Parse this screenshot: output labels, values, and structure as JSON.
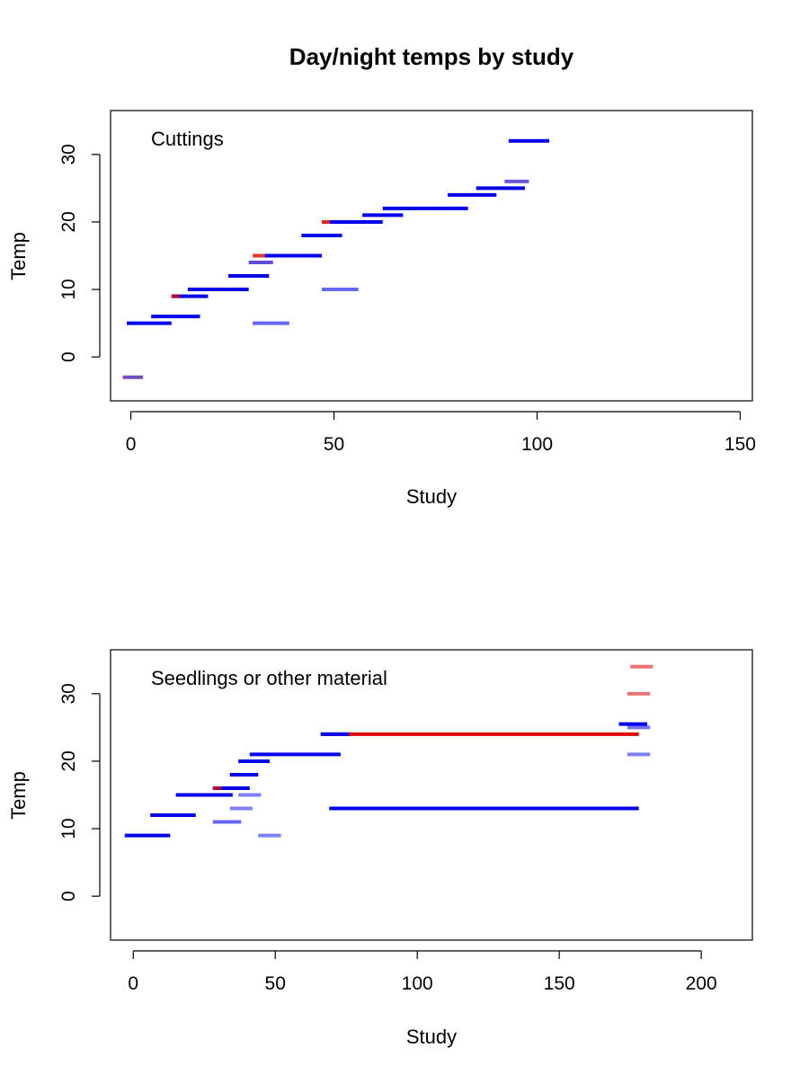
{
  "title": "Day/night temps by study",
  "colors": {
    "day": "#dd0000",
    "night": "#0000ee",
    "text": "#000000"
  },
  "chart_data": [
    {
      "type": "segment",
      "annotation": "Cuttings",
      "xlabel": "Study",
      "ylabel": "Temp",
      "xlim": [
        -5,
        153
      ],
      "ylim": [
        -6.5,
        36.5
      ],
      "xticks": [
        "0",
        "50",
        "100",
        "150"
      ],
      "yticks": [
        "0",
        "10",
        "20",
        "30"
      ],
      "grid": false,
      "segments": [
        {
          "x0": -2,
          "x1": 3,
          "y": -3,
          "color": "#5a2fb0",
          "opacity": 0.85
        },
        {
          "x0": -1,
          "x1": 10,
          "y": 5,
          "color": "#0000ee",
          "opacity": 1
        },
        {
          "x0": 5,
          "x1": 17,
          "y": 6,
          "color": "#0000ee",
          "opacity": 1
        },
        {
          "x0": 10,
          "x1": 19,
          "y": 9,
          "color": "#0000ee",
          "opacity": 1
        },
        {
          "x0": 10,
          "x1": 12,
          "y": 9,
          "color": "#dd0000",
          "opacity": 0.8
        },
        {
          "x0": 14,
          "x1": 29,
          "y": 10,
          "color": "#0000ee",
          "opacity": 1
        },
        {
          "x0": 24,
          "x1": 34,
          "y": 12,
          "color": "#0000ee",
          "opacity": 1
        },
        {
          "x0": 29,
          "x1": 35,
          "y": 14,
          "color": "#3a1fc8",
          "opacity": 0.8
        },
        {
          "x0": 30,
          "x1": 39,
          "y": 5,
          "color": "#0000ee",
          "opacity": 0.6
        },
        {
          "x0": 30,
          "x1": 34,
          "y": 15,
          "color": "#dd0000",
          "opacity": 0.8
        },
        {
          "x0": 33,
          "x1": 47,
          "y": 15,
          "color": "#0000ee",
          "opacity": 1
        },
        {
          "x0": 42,
          "x1": 52,
          "y": 18,
          "color": "#0000ee",
          "opacity": 1
        },
        {
          "x0": 47,
          "x1": 52,
          "y": 20,
          "color": "#dd0000",
          "opacity": 0.85
        },
        {
          "x0": 49,
          "x1": 62,
          "y": 20,
          "color": "#0000ee",
          "opacity": 1
        },
        {
          "x0": 47,
          "x1": 56,
          "y": 10,
          "color": "#0000ee",
          "opacity": 0.6
        },
        {
          "x0": 57,
          "x1": 67,
          "y": 21,
          "color": "#0000ee",
          "opacity": 1
        },
        {
          "x0": 62,
          "x1": 83,
          "y": 22,
          "color": "#0000ee",
          "opacity": 1
        },
        {
          "x0": 78,
          "x1": 90,
          "y": 24,
          "color": "#0000ee",
          "opacity": 1
        },
        {
          "x0": 85,
          "x1": 97,
          "y": 25,
          "color": "#0000ee",
          "opacity": 1
        },
        {
          "x0": 92,
          "x1": 98,
          "y": 26,
          "color": "#3a1fc8",
          "opacity": 0.75
        },
        {
          "x0": 93,
          "x1": 103,
          "y": 32,
          "color": "#0000ee",
          "opacity": 1
        }
      ]
    },
    {
      "type": "segment",
      "annotation": "Seedlings or other material",
      "xlabel": "Study",
      "ylabel": "Temp",
      "xlim": [
        -8,
        218
      ],
      "ylim": [
        -6.5,
        36.5
      ],
      "xticks": [
        "0",
        "50",
        "100",
        "150",
        "200"
      ],
      "yticks": [
        "0",
        "10",
        "20",
        "30"
      ],
      "grid": false,
      "segments": [
        {
          "x0": -3,
          "x1": 13,
          "y": 9,
          "color": "#0000ee",
          "opacity": 1
        },
        {
          "x0": 6,
          "x1": 22,
          "y": 12,
          "color": "#0000ee",
          "opacity": 1
        },
        {
          "x0": 15,
          "x1": 35,
          "y": 15,
          "color": "#0000ee",
          "opacity": 1
        },
        {
          "x0": 28,
          "x1": 41,
          "y": 16,
          "color": "#0000ee",
          "opacity": 1
        },
        {
          "x0": 28,
          "x1": 31,
          "y": 16,
          "color": "#dd0000",
          "opacity": 0.8
        },
        {
          "x0": 28,
          "x1": 38,
          "y": 11,
          "color": "#0000ee",
          "opacity": 0.6
        },
        {
          "x0": 34,
          "x1": 42,
          "y": 13,
          "color": "#0000ee",
          "opacity": 0.5
        },
        {
          "x0": 37,
          "x1": 45,
          "y": 15,
          "color": "#0000ee",
          "opacity": 0.5
        },
        {
          "x0": 34,
          "x1": 44,
          "y": 18,
          "color": "#0000ee",
          "opacity": 1
        },
        {
          "x0": 37,
          "x1": 48,
          "y": 20,
          "color": "#0000ee",
          "opacity": 1
        },
        {
          "x0": 41,
          "x1": 73,
          "y": 21,
          "color": "#0000ee",
          "opacity": 1
        },
        {
          "x0": 44,
          "x1": 52,
          "y": 9,
          "color": "#0000ee",
          "opacity": 0.5
        },
        {
          "x0": 66,
          "x1": 178,
          "y": 24,
          "color": "#dd0000",
          "opacity": 1
        },
        {
          "x0": 66,
          "x1": 76,
          "y": 24,
          "color": "#0000ee",
          "opacity": 1
        },
        {
          "x0": 69,
          "x1": 178,
          "y": 13,
          "color": "#0000ee",
          "opacity": 1
        },
        {
          "x0": 171,
          "x1": 181,
          "y": 25.5,
          "color": "#0000ee",
          "opacity": 1
        },
        {
          "x0": 174,
          "x1": 182,
          "y": 25,
          "color": "#0000ee",
          "opacity": 0.55
        },
        {
          "x0": 174,
          "x1": 182,
          "y": 21,
          "color": "#0000ee",
          "opacity": 0.5
        },
        {
          "x0": 174,
          "x1": 182,
          "y": 30,
          "color": "#dd0000",
          "opacity": 0.55
        },
        {
          "x0": 175,
          "x1": 183,
          "y": 34,
          "color": "#dd0000",
          "opacity": 0.55
        }
      ]
    }
  ]
}
